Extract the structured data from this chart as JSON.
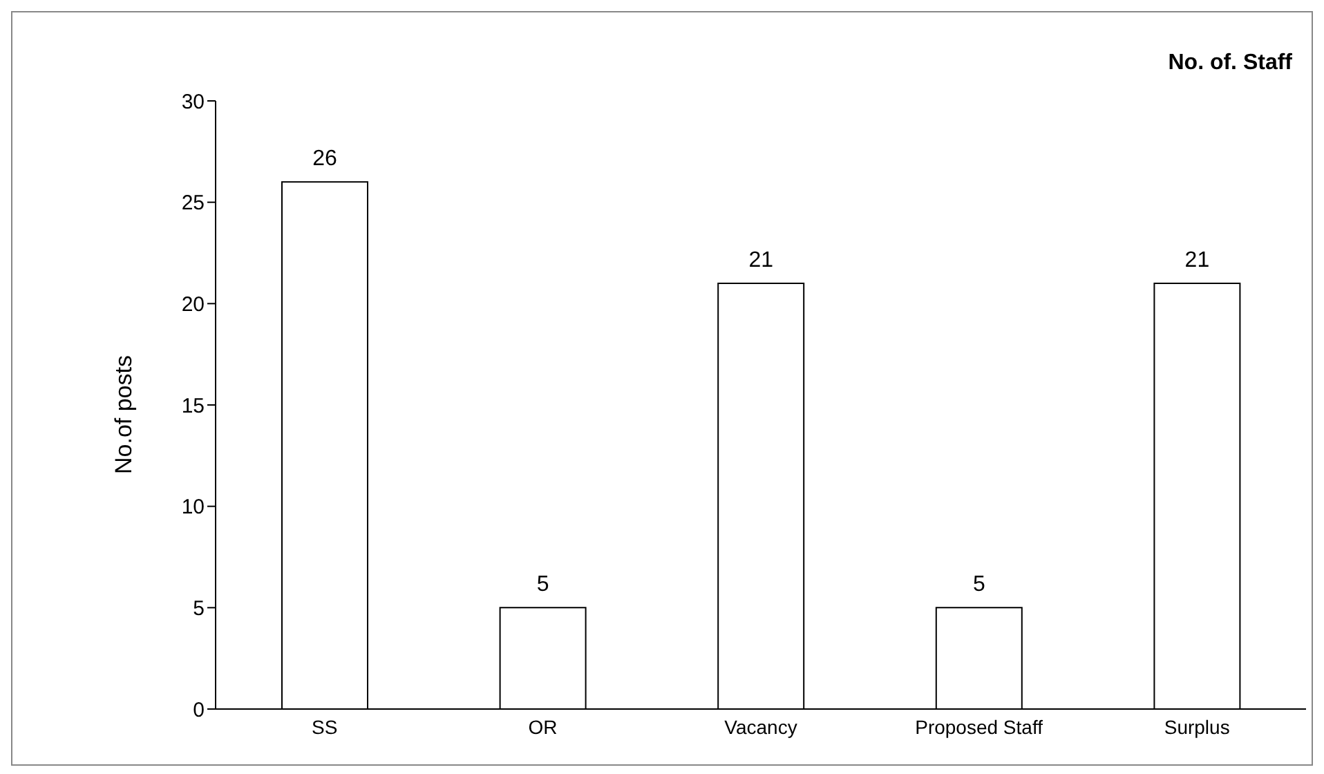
{
  "chart_data": {
    "type": "bar",
    "title": "No. of. Staff",
    "ylabel": "No.of posts",
    "categories": [
      "SS",
      "OR",
      "Vacancy",
      "Proposed Staff",
      "Surplus"
    ],
    "values": [
      26,
      5,
      21,
      5,
      21
    ],
    "color": "#ffffff",
    "ylim": [
      0,
      30
    ],
    "yticks": [
      0,
      5,
      10,
      15,
      20,
      25,
      30
    ],
    "grid": false,
    "data_labels": true
  }
}
